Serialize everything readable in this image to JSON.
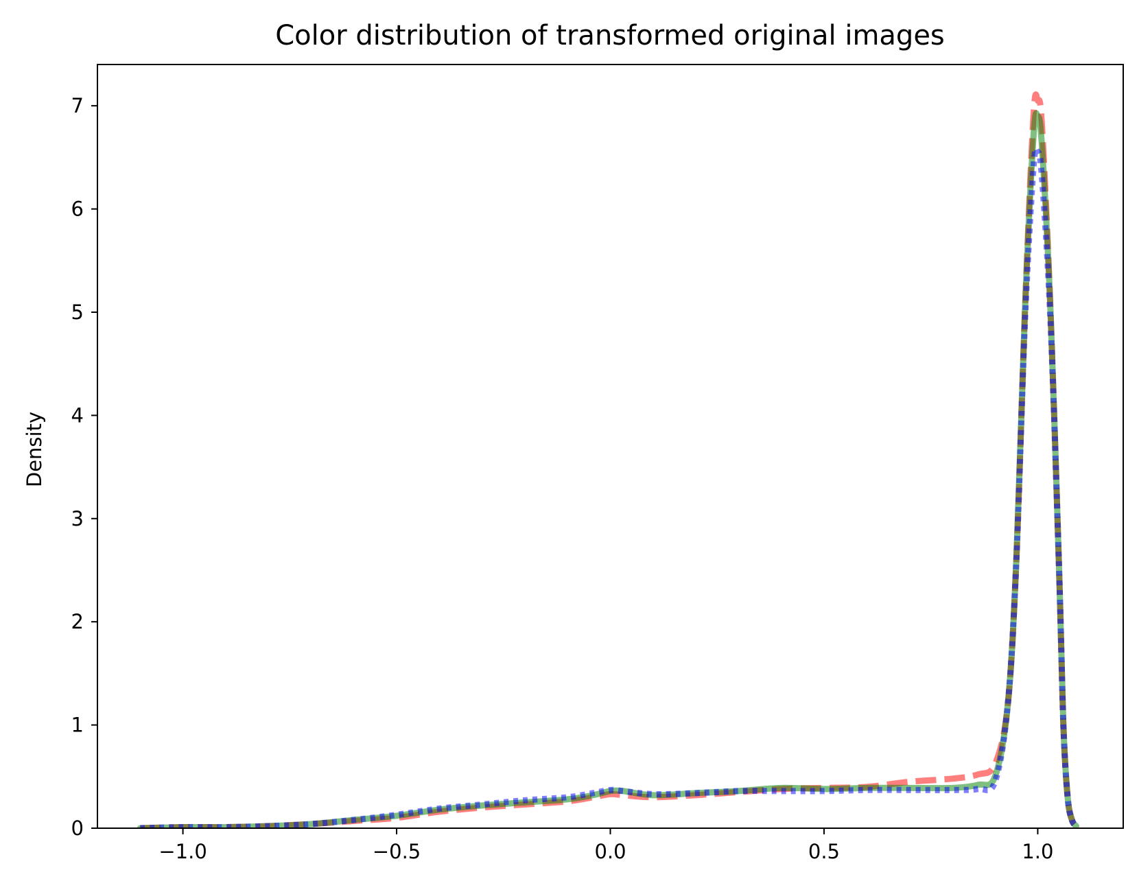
{
  "chart_data": {
    "type": "line",
    "title": "Color distribution of transformed original images",
    "xlabel": "",
    "ylabel": "Density",
    "xlim": [
      -1.2,
      1.2
    ],
    "ylim": [
      0,
      7.4
    ],
    "x_ticks": [
      -1.0,
      -0.5,
      0.0,
      0.5,
      1.0
    ],
    "x_tick_labels": [
      "−1.0",
      "−0.5",
      "0.0",
      "0.5",
      "1.0"
    ],
    "y_ticks": [
      0,
      1,
      2,
      3,
      4,
      5,
      6,
      7
    ],
    "y_tick_labels": [
      "0",
      "1",
      "2",
      "3",
      "4",
      "5",
      "6",
      "7"
    ],
    "grid": false,
    "legend": null,
    "series": [
      {
        "color": "#ff0000",
        "dash": "dashed",
        "points": [
          [
            -1.1,
            0.0
          ],
          [
            -1.0,
            0.01
          ],
          [
            -0.9,
            0.01
          ],
          [
            -0.8,
            0.02
          ],
          [
            -0.7,
            0.04
          ],
          [
            -0.6,
            0.07
          ],
          [
            -0.5,
            0.1
          ],
          [
            -0.4,
            0.16
          ],
          [
            -0.3,
            0.2
          ],
          [
            -0.2,
            0.23
          ],
          [
            -0.1,
            0.26
          ],
          [
            -0.04,
            0.3
          ],
          [
            0.0,
            0.33
          ],
          [
            0.03,
            0.32
          ],
          [
            0.1,
            0.3
          ],
          [
            0.2,
            0.32
          ],
          [
            0.3,
            0.35
          ],
          [
            0.4,
            0.38
          ],
          [
            0.5,
            0.39
          ],
          [
            0.6,
            0.4
          ],
          [
            0.7,
            0.45
          ],
          [
            0.8,
            0.48
          ],
          [
            0.86,
            0.52
          ],
          [
            0.9,
            0.62
          ],
          [
            0.93,
            1.2
          ],
          [
            0.95,
            2.6
          ],
          [
            0.97,
            5.0
          ],
          [
            0.99,
            6.9
          ],
          [
            1.0,
            7.05
          ],
          [
            1.01,
            6.8
          ],
          [
            1.03,
            5.0
          ],
          [
            1.05,
            2.5
          ],
          [
            1.06,
            1.0
          ],
          [
            1.07,
            0.3
          ],
          [
            1.08,
            0.08
          ],
          [
            1.09,
            0.02
          ]
        ]
      },
      {
        "color": "#008000",
        "dash": "solid",
        "points": [
          [
            -1.1,
            0.0
          ],
          [
            -1.0,
            0.01
          ],
          [
            -0.9,
            0.01
          ],
          [
            -0.8,
            0.02
          ],
          [
            -0.7,
            0.04
          ],
          [
            -0.6,
            0.08
          ],
          [
            -0.5,
            0.12
          ],
          [
            -0.4,
            0.18
          ],
          [
            -0.3,
            0.22
          ],
          [
            -0.2,
            0.25
          ],
          [
            -0.1,
            0.28
          ],
          [
            -0.04,
            0.32
          ],
          [
            0.0,
            0.36
          ],
          [
            0.03,
            0.36
          ],
          [
            0.1,
            0.32
          ],
          [
            0.2,
            0.34
          ],
          [
            0.3,
            0.36
          ],
          [
            0.4,
            0.39
          ],
          [
            0.5,
            0.38
          ],
          [
            0.6,
            0.39
          ],
          [
            0.7,
            0.39
          ],
          [
            0.8,
            0.39
          ],
          [
            0.86,
            0.42
          ],
          [
            0.9,
            0.5
          ],
          [
            0.93,
            1.2
          ],
          [
            0.95,
            2.6
          ],
          [
            0.97,
            5.0
          ],
          [
            0.99,
            6.7
          ],
          [
            1.0,
            6.9
          ],
          [
            1.01,
            6.6
          ],
          [
            1.03,
            5.0
          ],
          [
            1.05,
            2.5
          ],
          [
            1.06,
            1.0
          ],
          [
            1.07,
            0.3
          ],
          [
            1.08,
            0.08
          ],
          [
            1.09,
            0.02
          ]
        ]
      },
      {
        "color": "#0000ff",
        "dash": "dotted",
        "points": [
          [
            -1.1,
            0.0
          ],
          [
            -1.0,
            0.01
          ],
          [
            -0.9,
            0.01
          ],
          [
            -0.8,
            0.02
          ],
          [
            -0.7,
            0.04
          ],
          [
            -0.6,
            0.08
          ],
          [
            -0.5,
            0.13
          ],
          [
            -0.4,
            0.19
          ],
          [
            -0.3,
            0.23
          ],
          [
            -0.2,
            0.27
          ],
          [
            -0.1,
            0.3
          ],
          [
            -0.04,
            0.34
          ],
          [
            0.0,
            0.37
          ],
          [
            0.03,
            0.36
          ],
          [
            0.1,
            0.33
          ],
          [
            0.2,
            0.34
          ],
          [
            0.3,
            0.36
          ],
          [
            0.4,
            0.36
          ],
          [
            0.5,
            0.36
          ],
          [
            0.6,
            0.37
          ],
          [
            0.7,
            0.37
          ],
          [
            0.8,
            0.37
          ],
          [
            0.86,
            0.38
          ],
          [
            0.9,
            0.45
          ],
          [
            0.93,
            1.2
          ],
          [
            0.95,
            2.6
          ],
          [
            0.97,
            4.9
          ],
          [
            0.99,
            6.4
          ],
          [
            1.0,
            6.55
          ],
          [
            1.01,
            6.3
          ],
          [
            1.03,
            4.9
          ],
          [
            1.05,
            2.5
          ],
          [
            1.06,
            1.0
          ],
          [
            1.07,
            0.3
          ],
          [
            1.08,
            0.08
          ],
          [
            1.09,
            0.02
          ]
        ]
      }
    ]
  }
}
